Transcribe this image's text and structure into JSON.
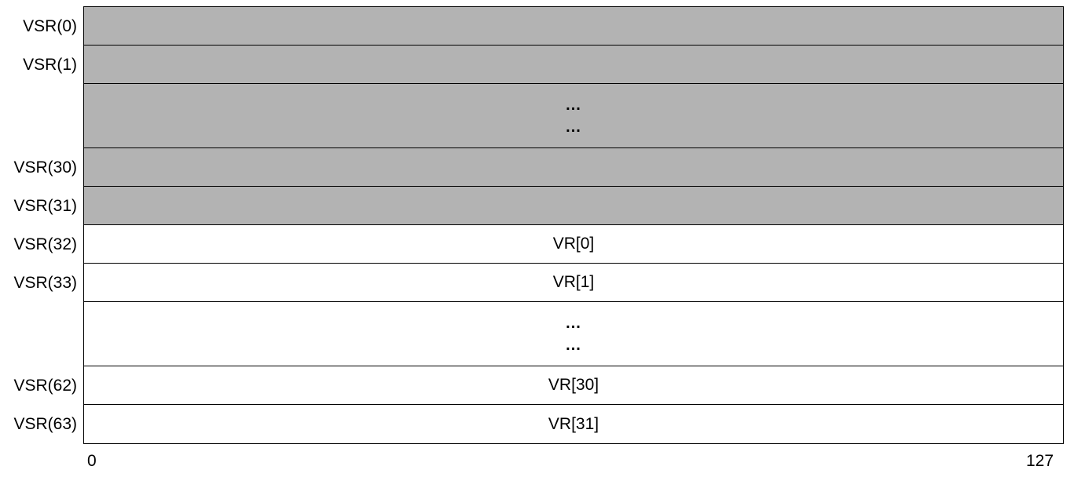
{
  "rows": [
    {
      "label": "VSR(0)",
      "text": "",
      "shaded": true,
      "ellipsis": false
    },
    {
      "label": "VSR(1)",
      "text": "",
      "shaded": true,
      "ellipsis": false
    },
    {
      "label": "",
      "text": "",
      "shaded": true,
      "ellipsis": true,
      "dots": [
        "...",
        "..."
      ]
    },
    {
      "label": "VSR(30)",
      "text": "",
      "shaded": true,
      "ellipsis": false
    },
    {
      "label": "VSR(31)",
      "text": "",
      "shaded": true,
      "ellipsis": false
    },
    {
      "label": "VSR(32)",
      "text": "VR[0]",
      "shaded": false,
      "ellipsis": false
    },
    {
      "label": "VSR(33)",
      "text": "VR[1]",
      "shaded": false,
      "ellipsis": false
    },
    {
      "label": "",
      "text": "",
      "shaded": false,
      "ellipsis": true,
      "dots": [
        "...",
        "..."
      ]
    },
    {
      "label": "VSR(62)",
      "text": "VR[30]",
      "shaded": false,
      "ellipsis": false
    },
    {
      "label": "VSR(63)",
      "text": "VR[31]",
      "shaded": false,
      "ellipsis": false
    }
  ],
  "bit_axis": {
    "start": "0",
    "end": "127"
  },
  "colors": {
    "shaded": "#b3b3b3",
    "unshaded": "#ffffff",
    "border": "#000000"
  }
}
